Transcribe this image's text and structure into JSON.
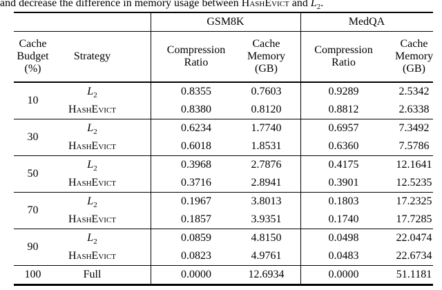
{
  "caption": {
    "prefix": "and decrease the difference in memory usage between ",
    "method": "HashEvict",
    "middle": " and ",
    "l2_main": "L",
    "l2_sub": "2",
    "suffix": "."
  },
  "table": {
    "group_headers": [
      "GSM8K",
      "MedQA"
    ],
    "columns": [
      {
        "header": "Cache\nBudget\n(%)"
      },
      {
        "header": "Strategy"
      },
      {
        "header": "Compression\nRatio"
      },
      {
        "header": "Cache\nMemory\n(GB)"
      },
      {
        "header": "Compression\nRatio"
      },
      {
        "header": "Cache\nMemory\n(GB)"
      }
    ],
    "groups": [
      {
        "budget": "10",
        "rows": [
          {
            "strategy": {
              "kind": "l2",
              "main": "L",
              "sub": "2"
            },
            "values": [
              "0.8355",
              "0.7603",
              "0.9289",
              "2.5342"
            ]
          },
          {
            "strategy": {
              "kind": "smallcaps",
              "text": "HashEvict"
            },
            "values": [
              "0.8380",
              "0.8120",
              "0.8812",
              "2.6338"
            ]
          }
        ]
      },
      {
        "budget": "30",
        "rows": [
          {
            "strategy": {
              "kind": "l2",
              "main": "L",
              "sub": "2"
            },
            "values": [
              "0.6234",
              "1.7740",
              "0.6957",
              "7.3492"
            ]
          },
          {
            "strategy": {
              "kind": "smallcaps",
              "text": "HashEvict"
            },
            "values": [
              "0.6018",
              "1.8531",
              "0.6360",
              "7.5786"
            ]
          }
        ]
      },
      {
        "budget": "50",
        "rows": [
          {
            "strategy": {
              "kind": "l2",
              "main": "L",
              "sub": "2"
            },
            "values": [
              "0.3968",
              "2.7876",
              "0.4175",
              "12.1641"
            ]
          },
          {
            "strategy": {
              "kind": "smallcaps",
              "text": "HashEvict"
            },
            "values": [
              "0.3716",
              "2.8941",
              "0.3901",
              "12.5235"
            ]
          }
        ]
      },
      {
        "budget": "70",
        "rows": [
          {
            "strategy": {
              "kind": "l2",
              "main": "L",
              "sub": "2"
            },
            "values": [
              "0.1967",
              "3.8013",
              "0.1803",
              "17.2325"
            ]
          },
          {
            "strategy": {
              "kind": "smallcaps",
              "text": "HashEvict"
            },
            "values": [
              "0.1857",
              "3.9351",
              "0.1740",
              "17.7285"
            ]
          }
        ]
      },
      {
        "budget": "90",
        "rows": [
          {
            "strategy": {
              "kind": "l2",
              "main": "L",
              "sub": "2"
            },
            "values": [
              "0.0859",
              "4.8150",
              "0.0498",
              "22.0474"
            ]
          },
          {
            "strategy": {
              "kind": "smallcaps",
              "text": "HashEvict"
            },
            "values": [
              "0.0823",
              "4.9761",
              "0.0483",
              "22.6734"
            ]
          }
        ]
      },
      {
        "budget": "100",
        "rows": [
          {
            "strategy": {
              "kind": "plain",
              "text": "Full"
            },
            "values": [
              "0.0000",
              "12.6934",
              "0.0000",
              "51.1181"
            ]
          }
        ]
      }
    ],
    "value_column_names": [
      "gsm8k-compression-ratio",
      "gsm8k-cache-memory",
      "medqa-compression-ratio",
      "medqa-cache-memory"
    ]
  }
}
